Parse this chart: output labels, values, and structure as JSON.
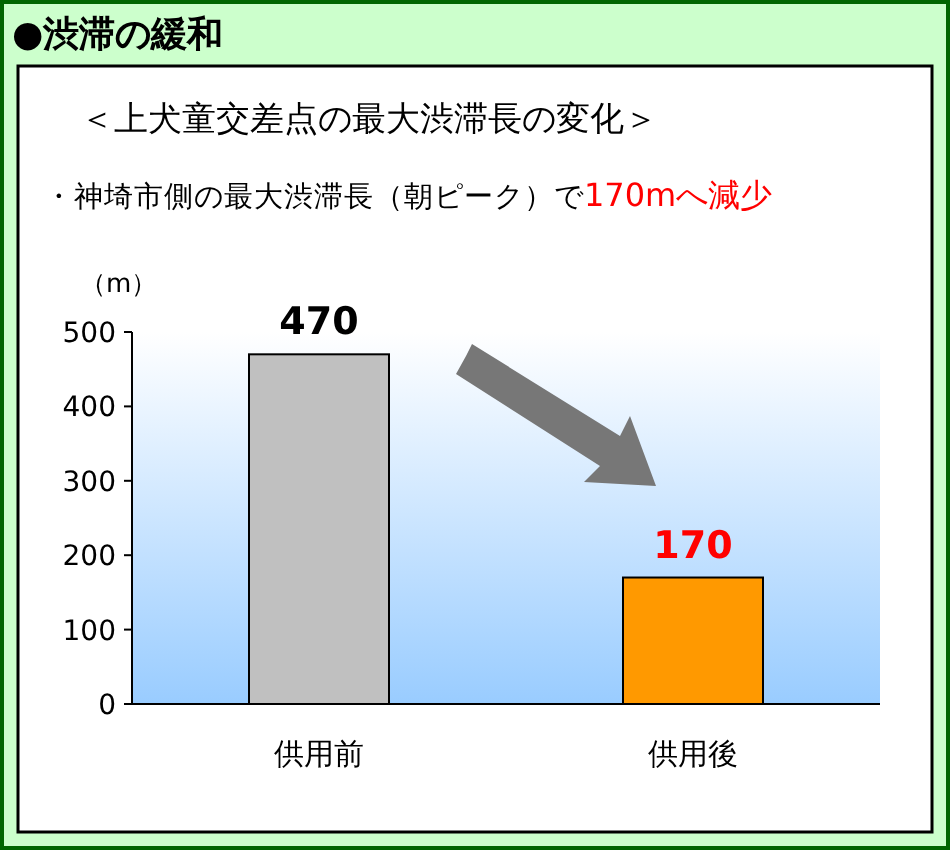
{
  "chart_data": {
    "type": "bar",
    "title": "●渋滞の緩和",
    "subtitle": "＜上犬童交差点の最大渋滞長の変化＞",
    "annotations": [
      "・神埼市側の最大渋滞長（朝ピーク）で",
      "170mへ減少"
    ],
    "ylabel": "（m）",
    "categories": [
      "供用前",
      "供用後"
    ],
    "values": [
      470,
      170
    ],
    "colors": [
      "#c0c0c0",
      "#ff9900"
    ],
    "ylim": [
      0,
      500
    ],
    "yticks": [
      0,
      100,
      200,
      300,
      400,
      500
    ],
    "data_labels": true,
    "grid": false
  }
}
